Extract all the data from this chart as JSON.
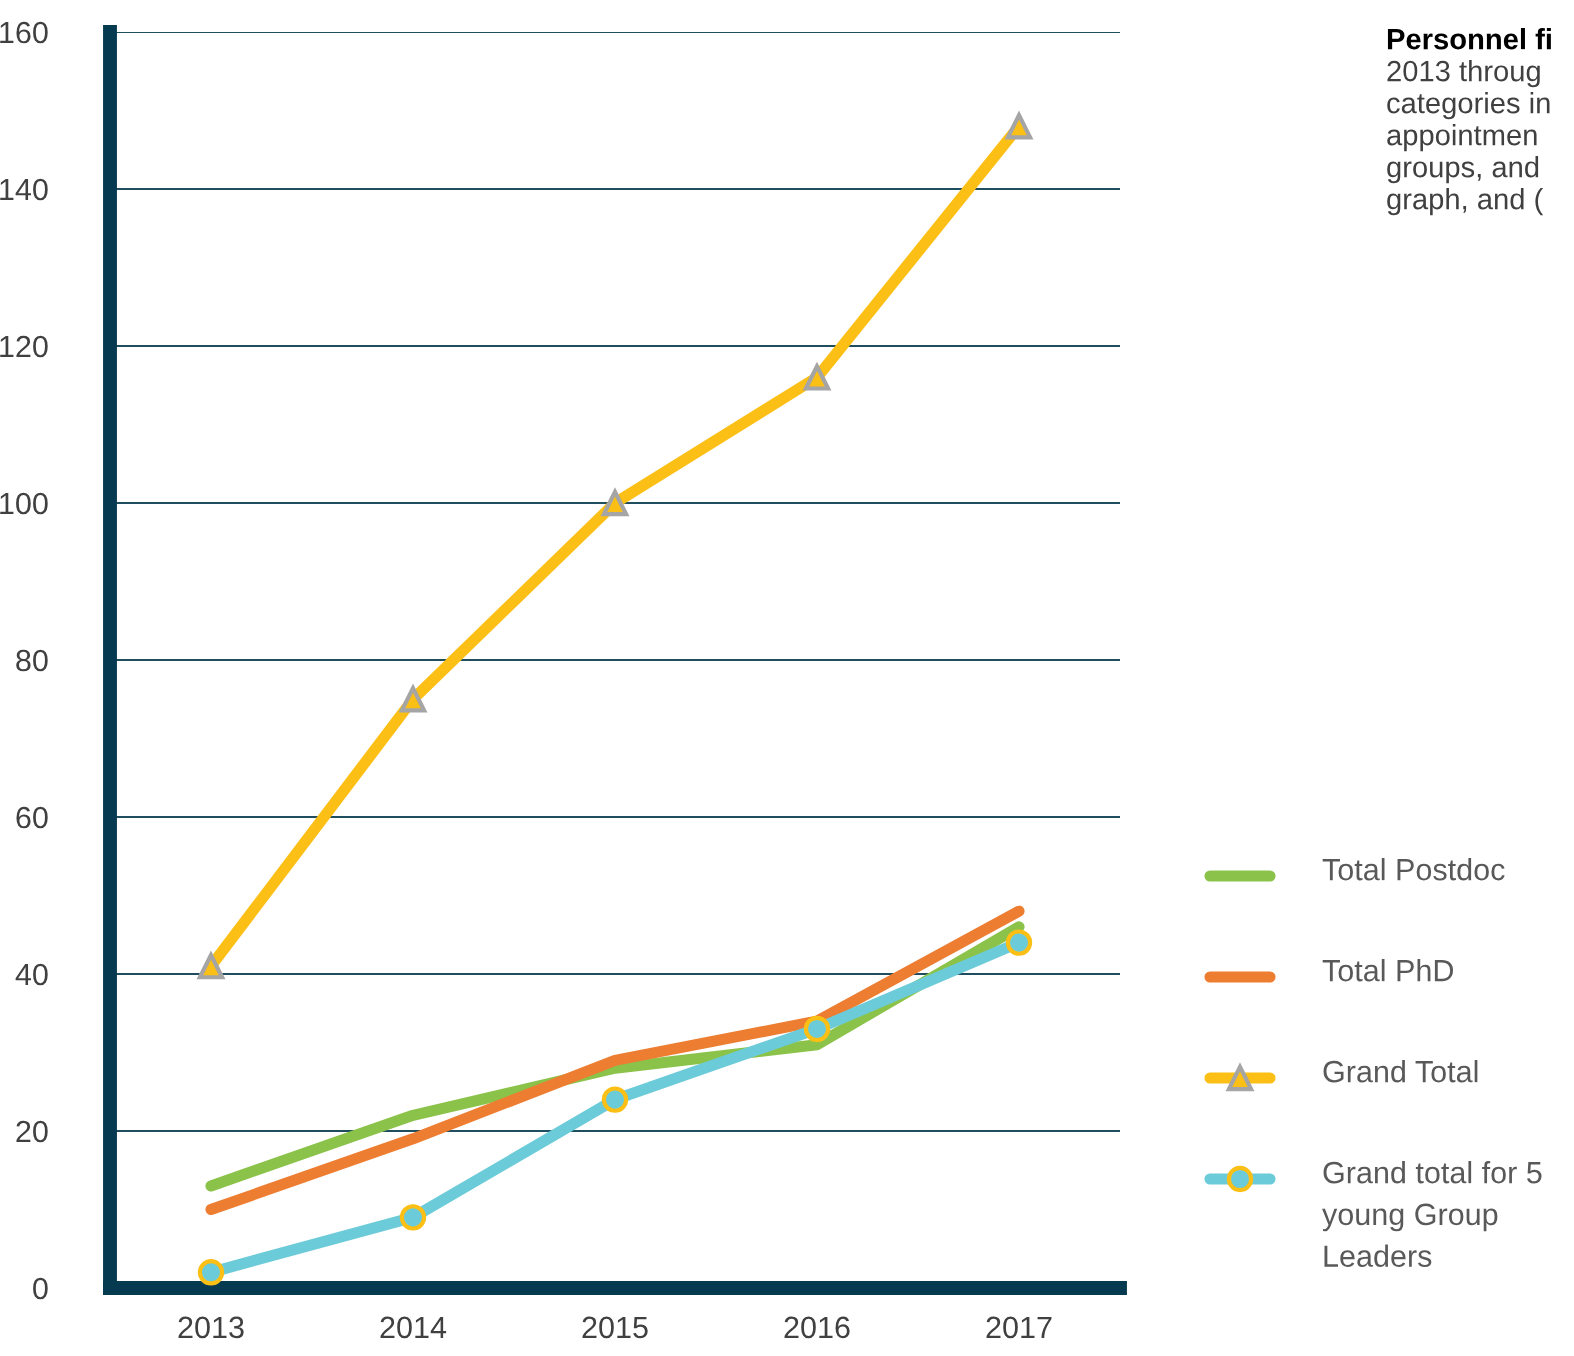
{
  "chart_data": {
    "type": "line",
    "categories": [
      "2013",
      "2014",
      "2015",
      "2016",
      "2017"
    ],
    "series": [
      {
        "name": "Total Postdoc",
        "color": "#8bc34a",
        "values": [
          13,
          22,
          28,
          31,
          46
        ],
        "marker": "none"
      },
      {
        "name": "Total PhD",
        "color": "#ed7d31",
        "values": [
          10,
          19,
          29,
          34,
          48
        ],
        "marker": "none"
      },
      {
        "name": "Grand Total",
        "color": "#fbbf16",
        "values": [
          41,
          75,
          100,
          116,
          148
        ],
        "marker": "triangle"
      },
      {
        "name": "Grand total for 5 young Group Leaders",
        "color": "#6ccbd8",
        "values": [
          2,
          9,
          24,
          33,
          44
        ],
        "marker": "circle"
      }
    ],
    "ylim": [
      0,
      160
    ],
    "yticks": [
      0,
      20,
      40,
      60,
      80,
      100,
      120,
      140,
      160
    ],
    "grid": "y",
    "legend": "right",
    "annotations": [
      "Personnel fi",
      "2013 throug",
      "categories in",
      "appointmen",
      "groups, and",
      "graph, and ("
    ]
  }
}
